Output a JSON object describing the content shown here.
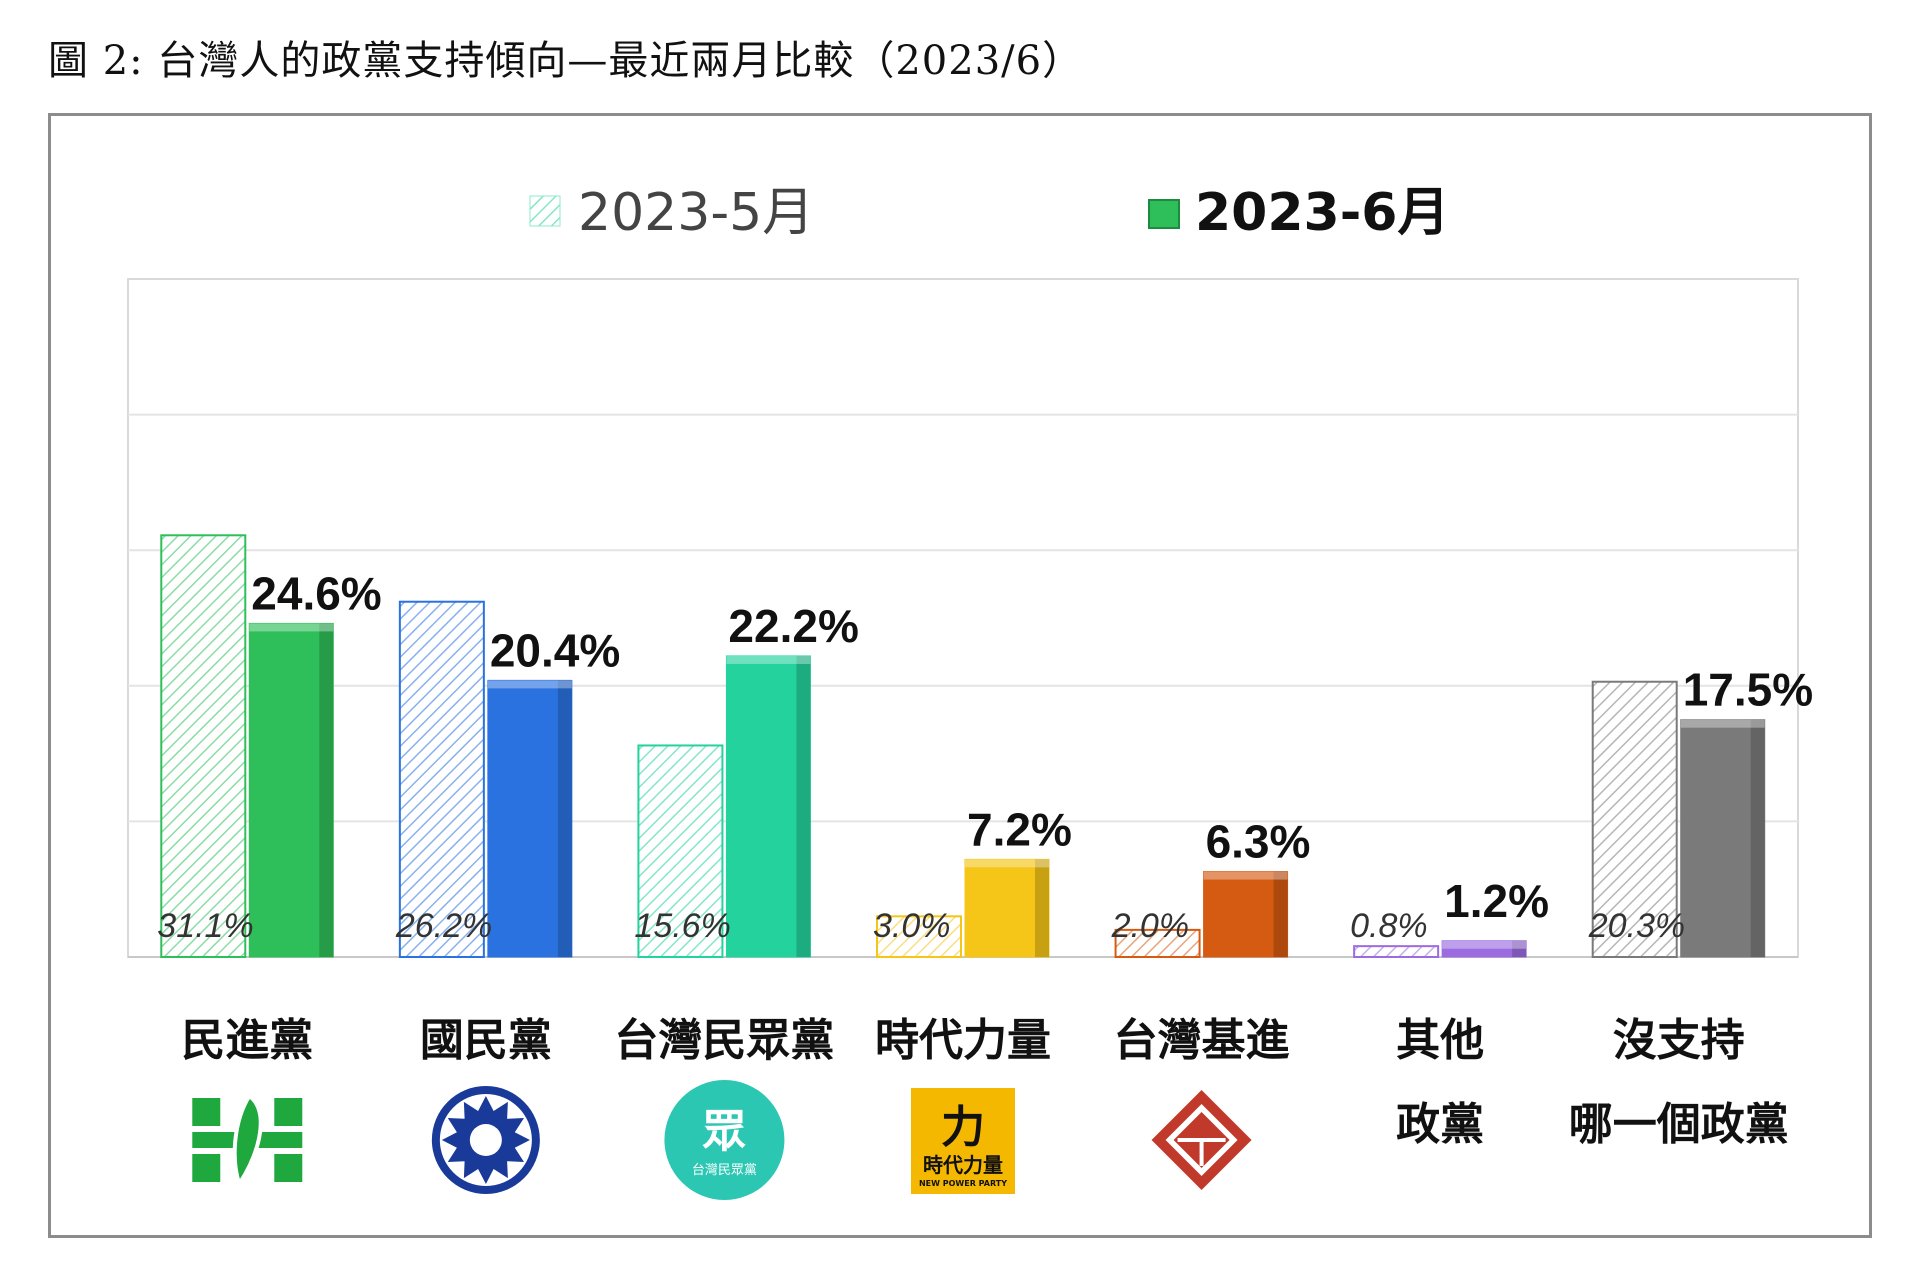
{
  "figure_title": "圖 2: 台灣人的政黨支持傾向—最近兩月比較（2023/6）",
  "colors": {
    "dpp": "#2fbf5a",
    "kmt": "#2a72e0",
    "tpp": "#23d29c",
    "npp": "#f5c518",
    "tsp": "#d55a12",
    "other": "#9a6ce0",
    "none": "#7a7a7a"
  },
  "icons": [
    "dpp-logo-icon",
    "kmt-logo-icon",
    "tpp-logo-icon",
    "npp-logo-icon",
    "tsp-logo-icon"
  ],
  "logo_text": {
    "tpp": [
      "眾",
      "台灣民眾黨"
    ],
    "npp": [
      "力",
      "時代力量",
      "NEW POWER PARTY"
    ]
  },
  "chart_data": {
    "type": "bar",
    "categories": [
      [
        "民進黨"
      ],
      [
        "國民黨"
      ],
      [
        "台灣民眾黨"
      ],
      [
        "時代力量"
      ],
      [
        "台灣基進"
      ],
      [
        "其他",
        "政黨"
      ],
      [
        "沒支持",
        "哪一個政黨"
      ]
    ],
    "series": [
      {
        "name": "2023-5月",
        "values": [
          31.1,
          26.2,
          15.6,
          3.0,
          2.0,
          0.8,
          20.3
        ],
        "labels": [
          "31.1%",
          "26.2%",
          "15.6%",
          "3.0%",
          "2.0%",
          "0.8%",
          "20.3%"
        ],
        "style": "hatched-light"
      },
      {
        "name": "2023-6月",
        "values": [
          24.6,
          20.4,
          22.2,
          7.2,
          6.3,
          1.2,
          17.5
        ],
        "labels": [
          "24.6%",
          "20.4%",
          "22.2%",
          "7.2%",
          "6.3%",
          "1.2%",
          "17.5%"
        ],
        "style": "solid"
      }
    ],
    "ylim": [
      0,
      50
    ],
    "grid": true,
    "legend": "top-center"
  }
}
